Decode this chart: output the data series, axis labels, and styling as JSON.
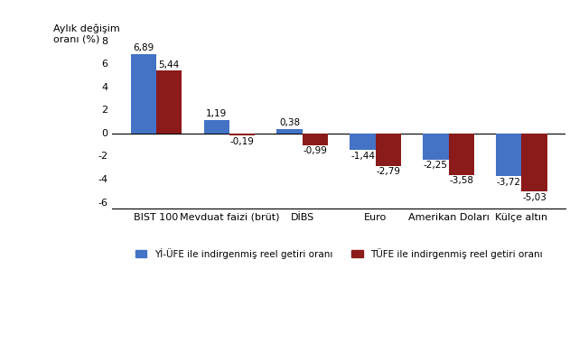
{
  "categories": [
    "BIST 100",
    "Mevduat faizi (brüt)",
    "DİBS",
    "Euro",
    "Amerikan Doları",
    "Külçe altın"
  ],
  "yi_ufe": [
    6.89,
    1.19,
    0.38,
    -1.44,
    -2.25,
    -3.72
  ],
  "tufe": [
    5.44,
    -0.19,
    -0.99,
    -2.79,
    -3.58,
    -5.03
  ],
  "yi_ufe_color": "#4472C4",
  "tufe_color": "#8B1A1A",
  "ylabel": "Aylık değişim\noranı (%)",
  "ylim": [
    -6.5,
    9.5
  ],
  "yticks": [
    -6,
    -4,
    -2,
    0,
    2,
    4,
    6,
    8
  ],
  "legend_yi_ufe": "Yİ-ÜFE ile indirgenmiş reel getiri oranı",
  "legend_tufe": "TÜFE ile indirgenmiş reel getiri oranı",
  "bar_width": 0.35
}
